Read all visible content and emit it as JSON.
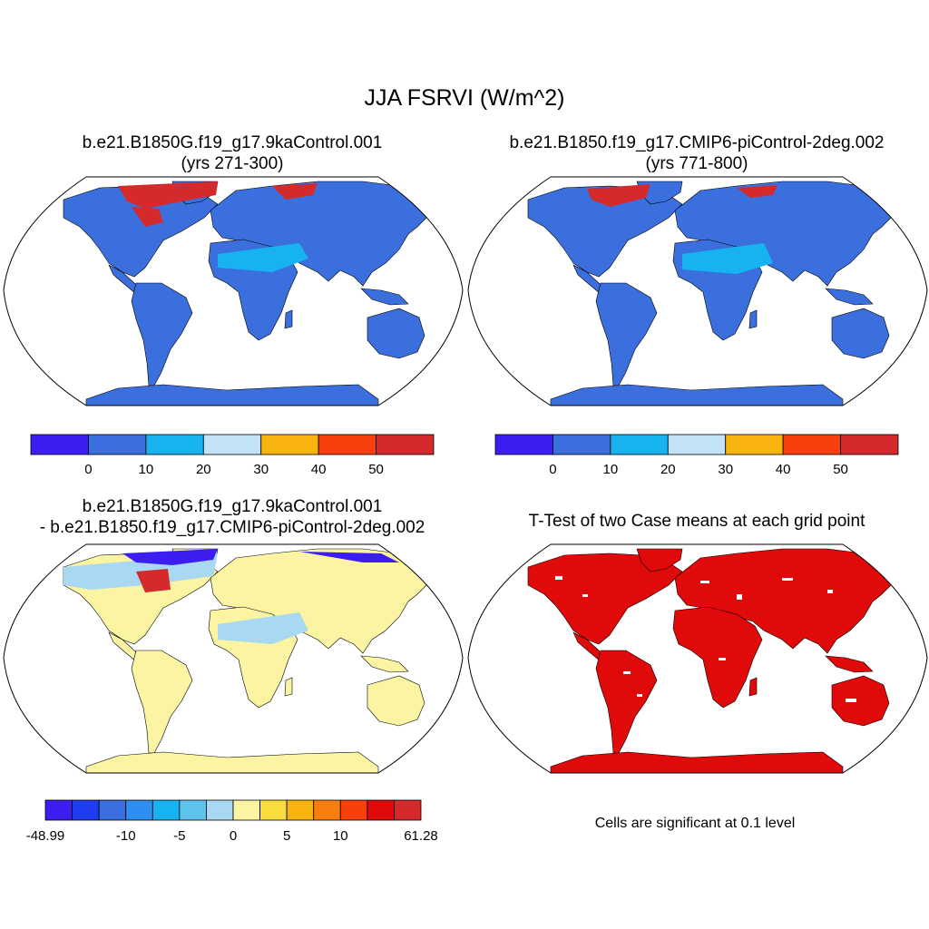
{
  "main_title": "JJA FSRVI (W/m^2)",
  "panels": {
    "case1": {
      "title_line1": "b.e21.B1850G.f19_g17.9kaControl.001",
      "title_line2": "(yrs 271-300)"
    },
    "case2": {
      "title_line1": "b.e21.B1850.f19_g17.CMIP6-piControl-2deg.002",
      "title_line2": "(yrs 771-800)"
    },
    "diff": {
      "title_line1": "b.e21.B1850G.f19_g17.9kaControl.001",
      "title_line2": "- b.e21.B1850.f19_g17.CMIP6-piControl-2deg.002"
    },
    "ttest": {
      "title": "T-Test of two Case means at each grid point",
      "note": "Cells are significant at 0.1 level"
    }
  },
  "colorbars": {
    "case": {
      "colors": [
        "#3d1ef0",
        "#3a6fdd",
        "#17b2f0",
        "#c2e3f6",
        "#f9b30e",
        "#f7400c",
        "#d42a2b"
      ],
      "tick_labels": [
        "0",
        "10",
        "20",
        "30",
        "40",
        "50"
      ]
    },
    "diff": {
      "colors": [
        "#3d1ef0",
        "#1f3cf0",
        "#3a6fdd",
        "#2e8ff0",
        "#17b2f0",
        "#5ec3ec",
        "#a8d8f2",
        "#fbf4a3",
        "#f9dc3e",
        "#f9b30e",
        "#f77e0c",
        "#f7400c",
        "#e00a0a",
        "#d42a2b"
      ],
      "tick_labels": [
        "-48.99",
        "-10",
        "-5",
        "0",
        "5",
        "10",
        "61.28"
      ]
    }
  },
  "map_colors": {
    "case_land": "#3a6fdd",
    "case_desert": "#17b2f0",
    "case_arctic_high": "#d42a2b",
    "case_arctic_mid": "#f7400c",
    "diff_land": "#fbf4a3",
    "diff_light_blue": "#a8d8f2",
    "diff_dark_red": "#d42a2b",
    "diff_blue": "#3d1ef0",
    "ttest_sig": "#e00a0a"
  }
}
